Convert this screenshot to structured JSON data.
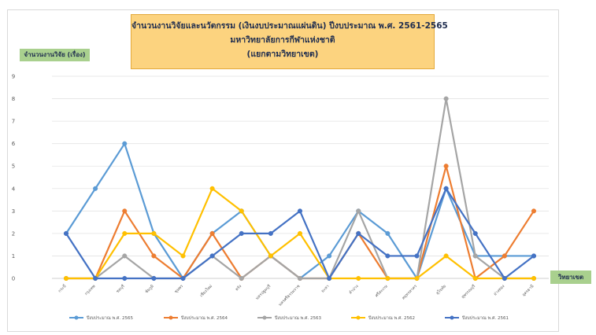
{
  "chart_data": {
    "type": "line",
    "title_lines": [
      "จำนวนงานวิจัยและนวัตกรรม (เงินงบประมาณแผ่นดิน) ปีงบประมาณ พ.ศ. 2561-2565",
      "มหาวิทยาลัยการกีฬาแห่งชาติ",
      "(แยกตามวิทยาเขต)"
    ],
    "ylabel": "จำนวนงานวิจัย (เรื่อง)",
    "xlabel": "วิทยาเขต",
    "ylim": [
      0,
      9
    ],
    "yticks": [
      0,
      1,
      2,
      3,
      4,
      5,
      6,
      7,
      8,
      9
    ],
    "categories": [
      "กระบี่",
      "กรุงเทพ",
      "ชลบุรี",
      "ชัยภูมิ",
      "ชุมพร",
      "เชียงใหม่",
      "ตรัง",
      "นครปฐมบุรี",
      "นครศรีธรรมราช",
      "ยะลา",
      "ลำปาง",
      "ศรีสะเกษ",
      "สมุทรสาคร",
      "สุโขทัย",
      "สุพรรณบุรี",
      "อ่างทอง",
      "อุดรธานี"
    ],
    "legend_position": "bottom",
    "grid": true,
    "series": [
      {
        "name": "ปีงบประมาณ พ.ศ. 2565",
        "color": "#5b9bd5",
        "values": [
          2,
          4,
          6,
          2,
          0,
          2,
          3,
          1,
          0,
          1,
          3,
          2,
          0,
          4,
          1,
          1,
          1
        ]
      },
      {
        "name": "ปีงบประมาณ พ.ศ. 2564",
        "color": "#ed7d31",
        "values": [
          0,
          0,
          3,
          1,
          0,
          2,
          0,
          1,
          0,
          0,
          2,
          0,
          0,
          5,
          0,
          1,
          3
        ]
      },
      {
        "name": "ปีงบประมาณ พ.ศ. 2563",
        "color": "#a5a5a5",
        "values": [
          0,
          0,
          1,
          0,
          0,
          1,
          0,
          1,
          0,
          0,
          3,
          0,
          0,
          8,
          1,
          0,
          0
        ]
      },
      {
        "name": "ปีงบประมาณ พ.ศ. 2562",
        "color": "#ffc000",
        "values": [
          0,
          0,
          2,
          2,
          1,
          4,
          3,
          1,
          2,
          0,
          0,
          0,
          0,
          1,
          0,
          0,
          0
        ]
      },
      {
        "name": "ปีงบประมาณ พ.ศ. 2561",
        "color": "#4472c4",
        "values": [
          2,
          0,
          0,
          0,
          0,
          1,
          2,
          2,
          3,
          0,
          2,
          1,
          1,
          4,
          2,
          0,
          1
        ]
      }
    ]
  }
}
